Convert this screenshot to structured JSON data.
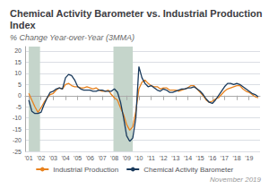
{
  "chart_data": {
    "type": "line",
    "title": "Chemical Activity Barometer vs. Industrial Production Index",
    "subtitle": "% Change Year-over-Year (3MMA)",
    "footnote": "November 2019",
    "x": [
      2001.0,
      2001.25,
      2001.5,
      2001.75,
      2002.0,
      2002.25,
      2002.5,
      2002.75,
      2003.0,
      2003.25,
      2003.5,
      2003.75,
      2004.0,
      2004.25,
      2004.5,
      2004.75,
      2005.0,
      2005.25,
      2005.5,
      2005.75,
      2006.0,
      2006.25,
      2006.5,
      2006.75,
      2007.0,
      2007.25,
      2007.5,
      2007.75,
      2008.0,
      2008.25,
      2008.5,
      2008.75,
      2009.0,
      2009.25,
      2009.5,
      2009.75,
      2010.0,
      2010.25,
      2010.5,
      2010.75,
      2011.0,
      2011.25,
      2011.5,
      2011.75,
      2012.0,
      2012.25,
      2012.5,
      2012.75,
      2013.0,
      2013.25,
      2013.5,
      2013.75,
      2014.0,
      2014.25,
      2014.5,
      2014.75,
      2015.0,
      2015.25,
      2015.5,
      2015.75,
      2016.0,
      2016.25,
      2016.5,
      2016.75,
      2017.0,
      2017.25,
      2017.5,
      2017.75,
      2018.0,
      2018.25,
      2018.5,
      2018.75,
      2019.0,
      2019.25,
      2019.5,
      2019.75
    ],
    "series": [
      {
        "name": "Industrial Production",
        "color": "#e8821e",
        "values": [
          1.0,
          -2.0,
          -5.0,
          -7.5,
          -5.5,
          -3.0,
          -1.0,
          0.5,
          1.0,
          2.5,
          3.5,
          3.0,
          5.0,
          5.5,
          4.5,
          4.0,
          4.0,
          3.5,
          3.5,
          4.0,
          3.5,
          3.0,
          3.5,
          2.5,
          2.0,
          2.0,
          2.5,
          0.5,
          -1.0,
          -2.0,
          -5.5,
          -8.5,
          -13.0,
          -15.5,
          -14.0,
          -7.0,
          3.0,
          6.0,
          7.0,
          5.5,
          4.5,
          4.0,
          4.0,
          3.0,
          3.5,
          3.5,
          2.5,
          2.5,
          2.5,
          2.0,
          2.5,
          3.0,
          3.5,
          4.5,
          4.5,
          3.0,
          1.5,
          0.0,
          -2.0,
          -3.0,
          -2.5,
          -1.5,
          -1.0,
          0.5,
          2.0,
          3.0,
          3.5,
          4.0,
          4.5,
          4.5,
          3.0,
          2.0,
          1.5,
          0.5,
          -0.5,
          -1.0
        ]
      },
      {
        "name": "Chemical Activity Barometer",
        "color": "#1a3a5c",
        "values": [
          -2.0,
          -7.0,
          -8.0,
          -8.0,
          -7.5,
          -4.0,
          -1.0,
          1.5,
          2.0,
          3.0,
          3.5,
          3.0,
          8.0,
          9.5,
          9.0,
          7.0,
          4.0,
          3.0,
          2.5,
          2.5,
          2.5,
          2.0,
          2.0,
          2.5,
          2.5,
          2.0,
          2.0,
          2.0,
          3.0,
          1.5,
          -3.0,
          -10.0,
          -18.0,
          -20.5,
          -19.0,
          -10.0,
          13.0,
          8.0,
          5.5,
          4.0,
          4.5,
          3.5,
          2.5,
          2.0,
          3.0,
          2.5,
          1.5,
          1.5,
          2.0,
          2.5,
          3.0,
          3.0,
          3.5,
          3.5,
          4.0,
          3.0,
          2.0,
          0.5,
          -1.5,
          -3.0,
          -3.5,
          -2.0,
          0.0,
          2.0,
          4.0,
          5.5,
          5.5,
          5.0,
          5.5,
          5.0,
          4.0,
          3.0,
          2.0,
          1.0,
          0.5,
          -0.5
        ]
      }
    ],
    "bands": [
      {
        "x": [
          2001.0,
          2001.92
        ],
        "color": "#c5d5cb"
      },
      {
        "x": [
          2007.92,
          2009.5
        ],
        "color": "#c5d5cb"
      }
    ],
    "xlim": [
      2000.7,
      2019.9
    ],
    "xticks": [
      {
        "value": 2001,
        "label": "'01"
      },
      {
        "value": 2002,
        "label": "'02"
      },
      {
        "value": 2003,
        "label": "'03"
      },
      {
        "value": 2004,
        "label": "'04"
      },
      {
        "value": 2005,
        "label": "'05"
      },
      {
        "value": 2006,
        "label": "'06"
      },
      {
        "value": 2007,
        "label": "'07"
      },
      {
        "value": 2008,
        "label": "'08"
      },
      {
        "value": 2009,
        "label": "'09"
      },
      {
        "value": 2010,
        "label": "'10"
      },
      {
        "value": 2011,
        "label": "'11"
      },
      {
        "value": 2012,
        "label": "'12"
      },
      {
        "value": 2013,
        "label": "'13"
      },
      {
        "value": 2014,
        "label": "'14"
      },
      {
        "value": 2015,
        "label": "'15"
      },
      {
        "value": 2016,
        "label": "'16"
      },
      {
        "value": 2017,
        "label": "'17"
      },
      {
        "value": 2018,
        "label": "'18"
      },
      {
        "value": 2019,
        "label": "'19"
      }
    ],
    "ylim": [
      -25,
      22
    ],
    "yticks": [
      -25,
      -20,
      -15,
      -10,
      -5,
      0,
      5,
      10,
      15,
      20
    ],
    "grid": true,
    "legend": "bottom"
  }
}
